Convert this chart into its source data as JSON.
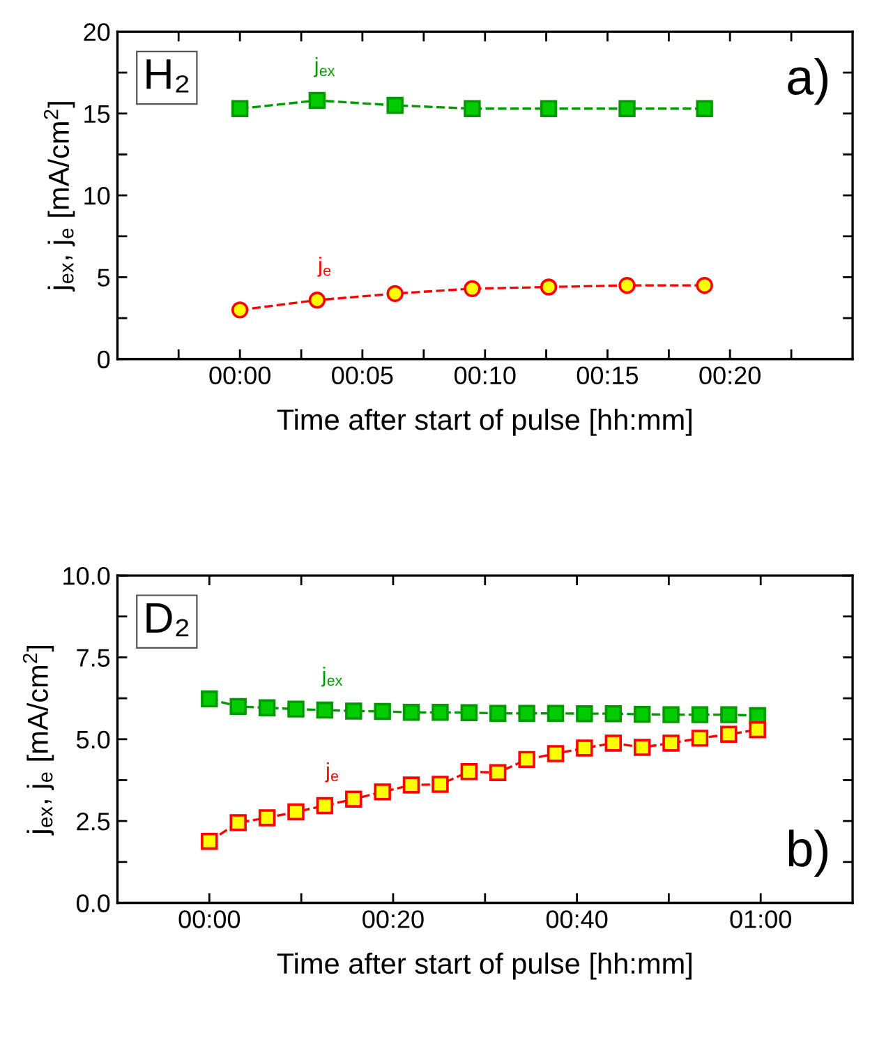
{
  "chart_data": [
    {
      "type": "line",
      "xlabel": "Time after start of pulse [hh:mm]",
      "ylabel": "j$_{ex}$, j$_{e}$ [mA/cm$^{2}$]",
      "annotations": [
        "H₂",
        "a)"
      ],
      "xlim": [
        -0.0833,
        0.4167
      ],
      "xticks": [
        {
          "value": -0.0417,
          "label": null
        },
        {
          "value": 0,
          "label": "00:00"
        },
        {
          "value": 0.0417,
          "label": null
        },
        {
          "value": 0.0833,
          "label": "00:05"
        },
        {
          "value": 0.125,
          "label": null
        },
        {
          "value": 0.1667,
          "label": "00:10"
        },
        {
          "value": 0.2083,
          "label": null
        },
        {
          "value": 0.25,
          "label": "00:15"
        },
        {
          "value": 0.2917,
          "label": null
        },
        {
          "value": 0.3333,
          "label": "00:20"
        },
        {
          "value": 0.375,
          "label": null
        }
      ],
      "ylim": [
        0,
        20
      ],
      "yticks": [
        0,
        {
          "value": 2.5,
          "label": null
        },
        5,
        {
          "value": 7.5,
          "label": null
        },
        10,
        {
          "value": 12.5,
          "label": null
        },
        15,
        {
          "value": 17.5,
          "label": null
        },
        20
      ],
      "line_style": "dashed",
      "grid": false,
      "legend": false,
      "series": [
        {
          "name": "j$_{ex}$",
          "color": "#009900",
          "marker": "square",
          "colors": [
            "#00cc00",
            "#00cc00",
            "#00cc00",
            "#00cc00",
            "#00cc00",
            "#00cc00",
            "#00cc00"
          ],
          "x": [
            0,
            0.0525,
            0.1055,
            0.158,
            0.21,
            0.2633,
            0.316
          ],
          "values": [
            15.3,
            15.8,
            15.5,
            15.3,
            15.3,
            15.3,
            15.3
          ]
        },
        {
          "name": "j$_{e}$",
          "color": "#ff0000",
          "marker": "circle",
          "colors": [
            "#ffff00",
            "#ffff00",
            "#ffff00",
            "#ffff00",
            "#ffff00",
            "#ffff00",
            "#ffff00"
          ],
          "x": [
            0,
            0.0525,
            0.1055,
            0.158,
            0.21,
            0.2633,
            0.316
          ],
          "values": [
            3.0,
            3.6,
            4.0,
            4.3,
            4.4,
            4.5,
            4.5
          ]
        }
      ]
    },
    {
      "type": "line",
      "xlabel": "Time after start of pulse [hh:mm]",
      "ylabel": "j$_{ex}$, j$_{e}$ [mA/cm$^{2}$]",
      "annotations": [
        "D₂",
        "b)"
      ],
      "xlim": [
        -0.1667,
        1.1667
      ],
      "xticks": [
        {
          "value": 0,
          "label": "00:00"
        },
        {
          "value": 0.1667,
          "label": null
        },
        {
          "value": 0.3333,
          "label": "00:20"
        },
        {
          "value": 0.5,
          "label": null
        },
        {
          "value": 0.6667,
          "label": "00:40"
        },
        {
          "value": 0.8333,
          "label": null
        },
        {
          "value": 1.0,
          "label": "01:00"
        }
      ],
      "ylim": [
        0,
        10
      ],
      "yticks": [
        {
          "value": 0,
          "label": "0.0"
        },
        {
          "value": 1.25,
          "label": null
        },
        {
          "value": 2.5,
          "label": "2.5"
        },
        {
          "value": 3.75,
          "label": null
        },
        {
          "value": 5,
          "label": "5.0"
        },
        {
          "value": 6.25,
          "label": null
        },
        {
          "value": 7.5,
          "label": "7.5"
        },
        {
          "value": 8.75,
          "label": null
        },
        {
          "value": 10,
          "label": "10.0"
        }
      ],
      "line_style": "dashed",
      "grid": false,
      "legend": false,
      "series": [
        {
          "name": "j$_{ex}$",
          "color": "#009900",
          "marker": "square",
          "colors": [
            "#00cc00",
            "#00cc00",
            "#00cc00",
            "#00cc00",
            "#00cc00",
            "#00cc00",
            "#00cc00",
            "#00cc00",
            "#00cc00",
            "#00cc00",
            "#00cc00",
            "#00cc00",
            "#00cc00",
            "#00cc00",
            "#00cc00",
            "#00cc00",
            "#00cc00",
            "#00cc00",
            "#00cc00",
            "#00cc00"
          ],
          "x": [
            0,
            0.0523,
            0.1047,
            0.157,
            0.2093,
            0.2617,
            0.314,
            0.3663,
            0.4187,
            0.471,
            0.5233,
            0.5757,
            0.628,
            0.6803,
            0.7327,
            0.785,
            0.8373,
            0.8897,
            0.942,
            0.9943
          ],
          "values": [
            6.23,
            6.0,
            5.96,
            5.92,
            5.89,
            5.86,
            5.85,
            5.82,
            5.82,
            5.81,
            5.79,
            5.79,
            5.79,
            5.78,
            5.78,
            5.76,
            5.75,
            5.75,
            5.75,
            5.72
          ]
        },
        {
          "name": "j$_{e}$",
          "color": "#ff0000",
          "marker": "square",
          "colors": [
            "#ffff00",
            "#ffff00",
            "#ffff00",
            "#ffff00",
            "#ffff00",
            "#ffff00",
            "#ffff00",
            "#ffff00",
            "#ffff00",
            "#ffff00",
            "#ffff00",
            "#ffff00",
            "#ffff00",
            "#ffff00",
            "#ffff00",
            "#ffff00",
            "#ffff00",
            "#ffff00",
            "#ffff00",
            "#ffff00"
          ],
          "x": [
            0,
            0.0523,
            0.1047,
            0.157,
            0.2093,
            0.2617,
            0.314,
            0.3663,
            0.4187,
            0.471,
            0.5233,
            0.5757,
            0.628,
            0.6803,
            0.7327,
            0.785,
            0.8373,
            0.8897,
            0.942,
            0.9943
          ],
          "values": [
            1.88,
            2.45,
            2.6,
            2.78,
            2.97,
            3.17,
            3.39,
            3.6,
            3.62,
            4.01,
            3.98,
            4.38,
            4.56,
            4.73,
            4.88,
            4.75,
            4.88,
            5.03,
            5.15,
            5.29
          ]
        }
      ]
    }
  ]
}
